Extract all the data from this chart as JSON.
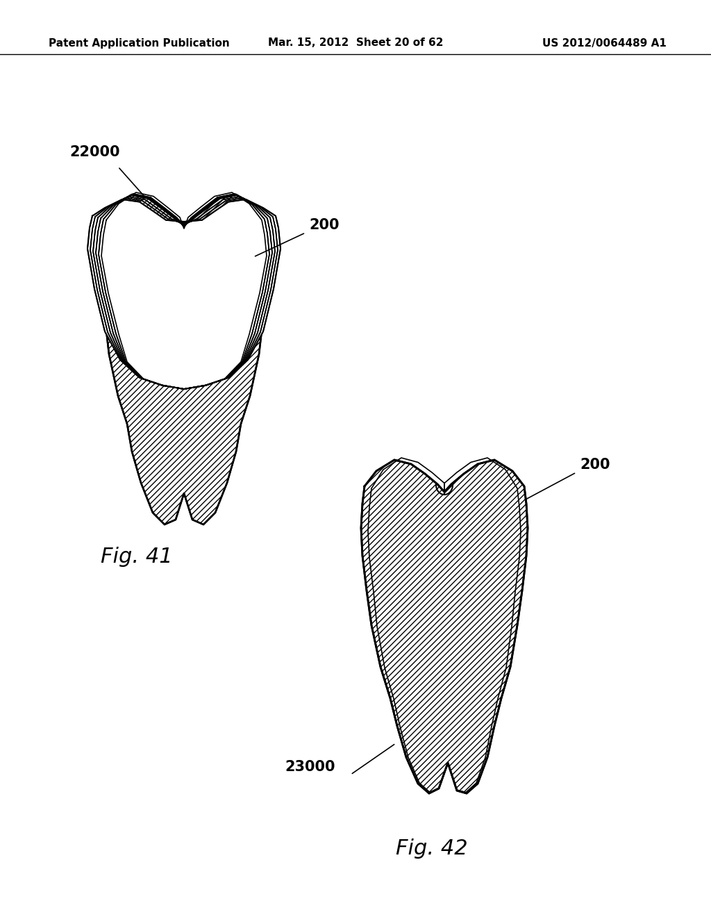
{
  "background_color": "#ffffff",
  "header_left": "Patent Application Publication",
  "header_mid": "Mar. 15, 2012  Sheet 20 of 62",
  "header_right": "US 2012/0064489 A1",
  "fig41_label": "Fig. 41",
  "fig42_label": "Fig. 42",
  "label_22000": "22000",
  "label_200_fig41": "200",
  "label_200_fig42": "200",
  "label_23000": "23000",
  "hatch_pattern": "////",
  "line_color": "#000000",
  "hatch_color": "#000000",
  "fig_label_fontsize": 20,
  "header_fontsize": 11,
  "annotation_fontsize": 14
}
